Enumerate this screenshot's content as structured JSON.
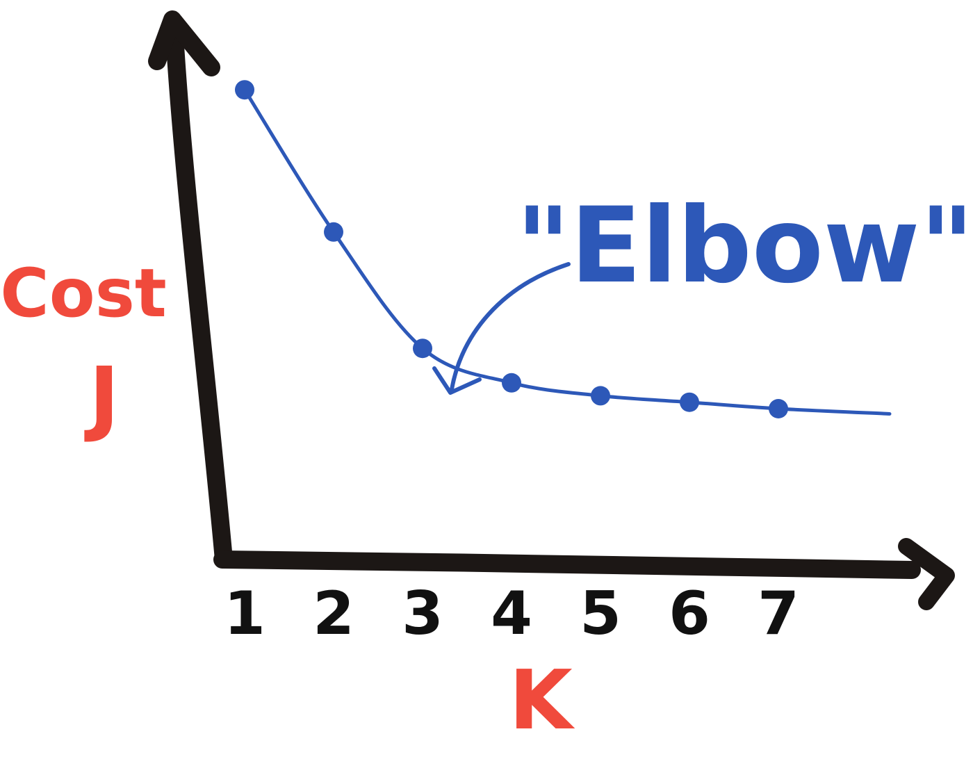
{
  "chart_data": {
    "type": "line",
    "x": [
      1,
      2,
      3,
      4,
      5,
      6,
      7
    ],
    "series": [
      {
        "values": [
          9.2,
          5.9,
          3.2,
          2.4,
          2.1,
          1.95,
          1.8
        ]
      }
    ],
    "categories": [
      "1",
      "2",
      "3",
      "4",
      "5",
      "6",
      "7"
    ],
    "xlabel": "K",
    "ylabel_line1": "Cost",
    "ylabel_line2": "J",
    "annotation": "\"Elbow\"",
    "annotation_target_k": 3,
    "xlim": [
      0.75,
      8.5
    ],
    "ylim": [
      -1.7,
      10.8
    ],
    "grid": false,
    "colors": {
      "axis": "#1c1715",
      "series": "#2d58b8",
      "label": "#f04a3c",
      "ticks": "#111111"
    }
  }
}
